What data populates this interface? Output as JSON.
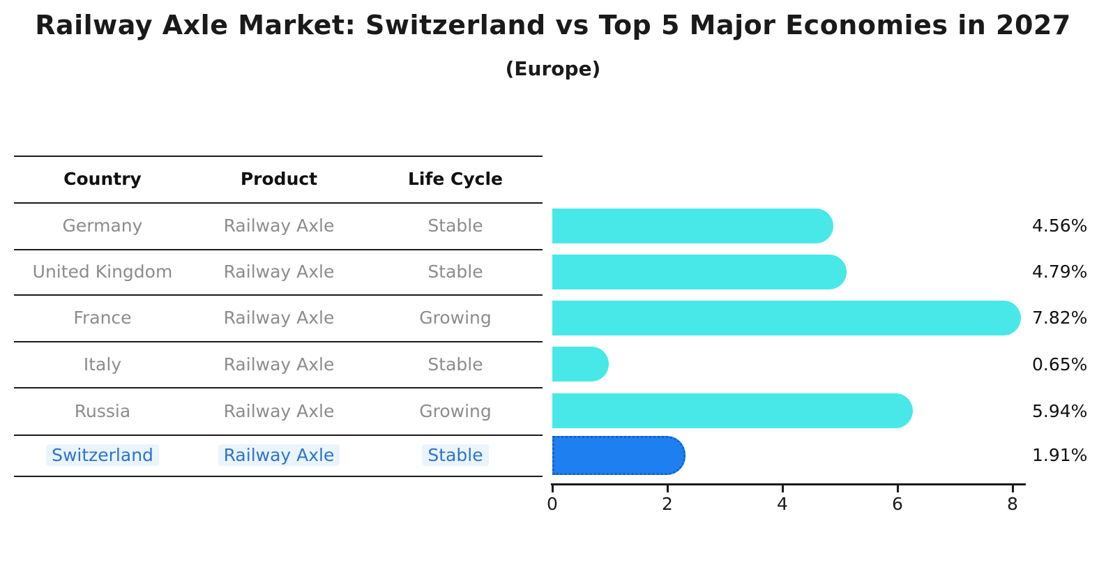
{
  "title": "Railway Axle Market: Switzerland vs Top 5 Major Economies in 2027",
  "subtitle": "(Europe)",
  "table": {
    "headers": [
      "Country",
      "Product",
      "Life Cycle"
    ],
    "rows": [
      {
        "country": "Germany",
        "product": "Railway Axle",
        "life_cycle": "Stable",
        "highlight": false
      },
      {
        "country": "United Kingdom",
        "product": "Railway Axle",
        "life_cycle": "Stable",
        "highlight": false
      },
      {
        "country": "France",
        "product": "Railway Axle",
        "life_cycle": "Growing",
        "highlight": false
      },
      {
        "country": "Italy",
        "product": "Railway Axle",
        "life_cycle": "Stable",
        "highlight": false
      },
      {
        "country": "Russia",
        "product": "Railway Axle",
        "life_cycle": "Growing",
        "highlight": false
      },
      {
        "country": "Switzerland",
        "product": "Railway Axle",
        "life_cycle": "Stable",
        "highlight": true
      }
    ]
  },
  "chart_data": {
    "type": "bar",
    "orientation": "horizontal",
    "title": "Railway Axle Market: Switzerland vs Top 5 Major Economies in 2027",
    "subtitle": "(Europe)",
    "categories": [
      "Germany",
      "United Kingdom",
      "France",
      "Italy",
      "Russia",
      "Switzerland"
    ],
    "values": [
      4.56,
      4.79,
      7.82,
      0.65,
      5.94,
      1.91
    ],
    "value_labels": [
      "4.56%",
      "4.79%",
      "7.82%",
      "0.65%",
      "5.94%",
      "1.91%"
    ],
    "xlabel": "",
    "ylabel": "",
    "xlim": [
      0,
      8
    ],
    "x_ticks": [
      "0",
      "2",
      "4",
      "6",
      "8"
    ],
    "grid": false,
    "legend": false,
    "highlighted_category": "Switzerland"
  },
  "colors": {
    "bar_default": "#48e8e8",
    "bar_highlight": "#1e80f0",
    "bar_highlight_border": "#1261c9",
    "highlight_text": "#2e74c9",
    "highlight_text_bg": "#eaf4fc",
    "body_text": "#8c8c8c",
    "header_text": "#111111",
    "axis_color": "#1a1a1a"
  }
}
